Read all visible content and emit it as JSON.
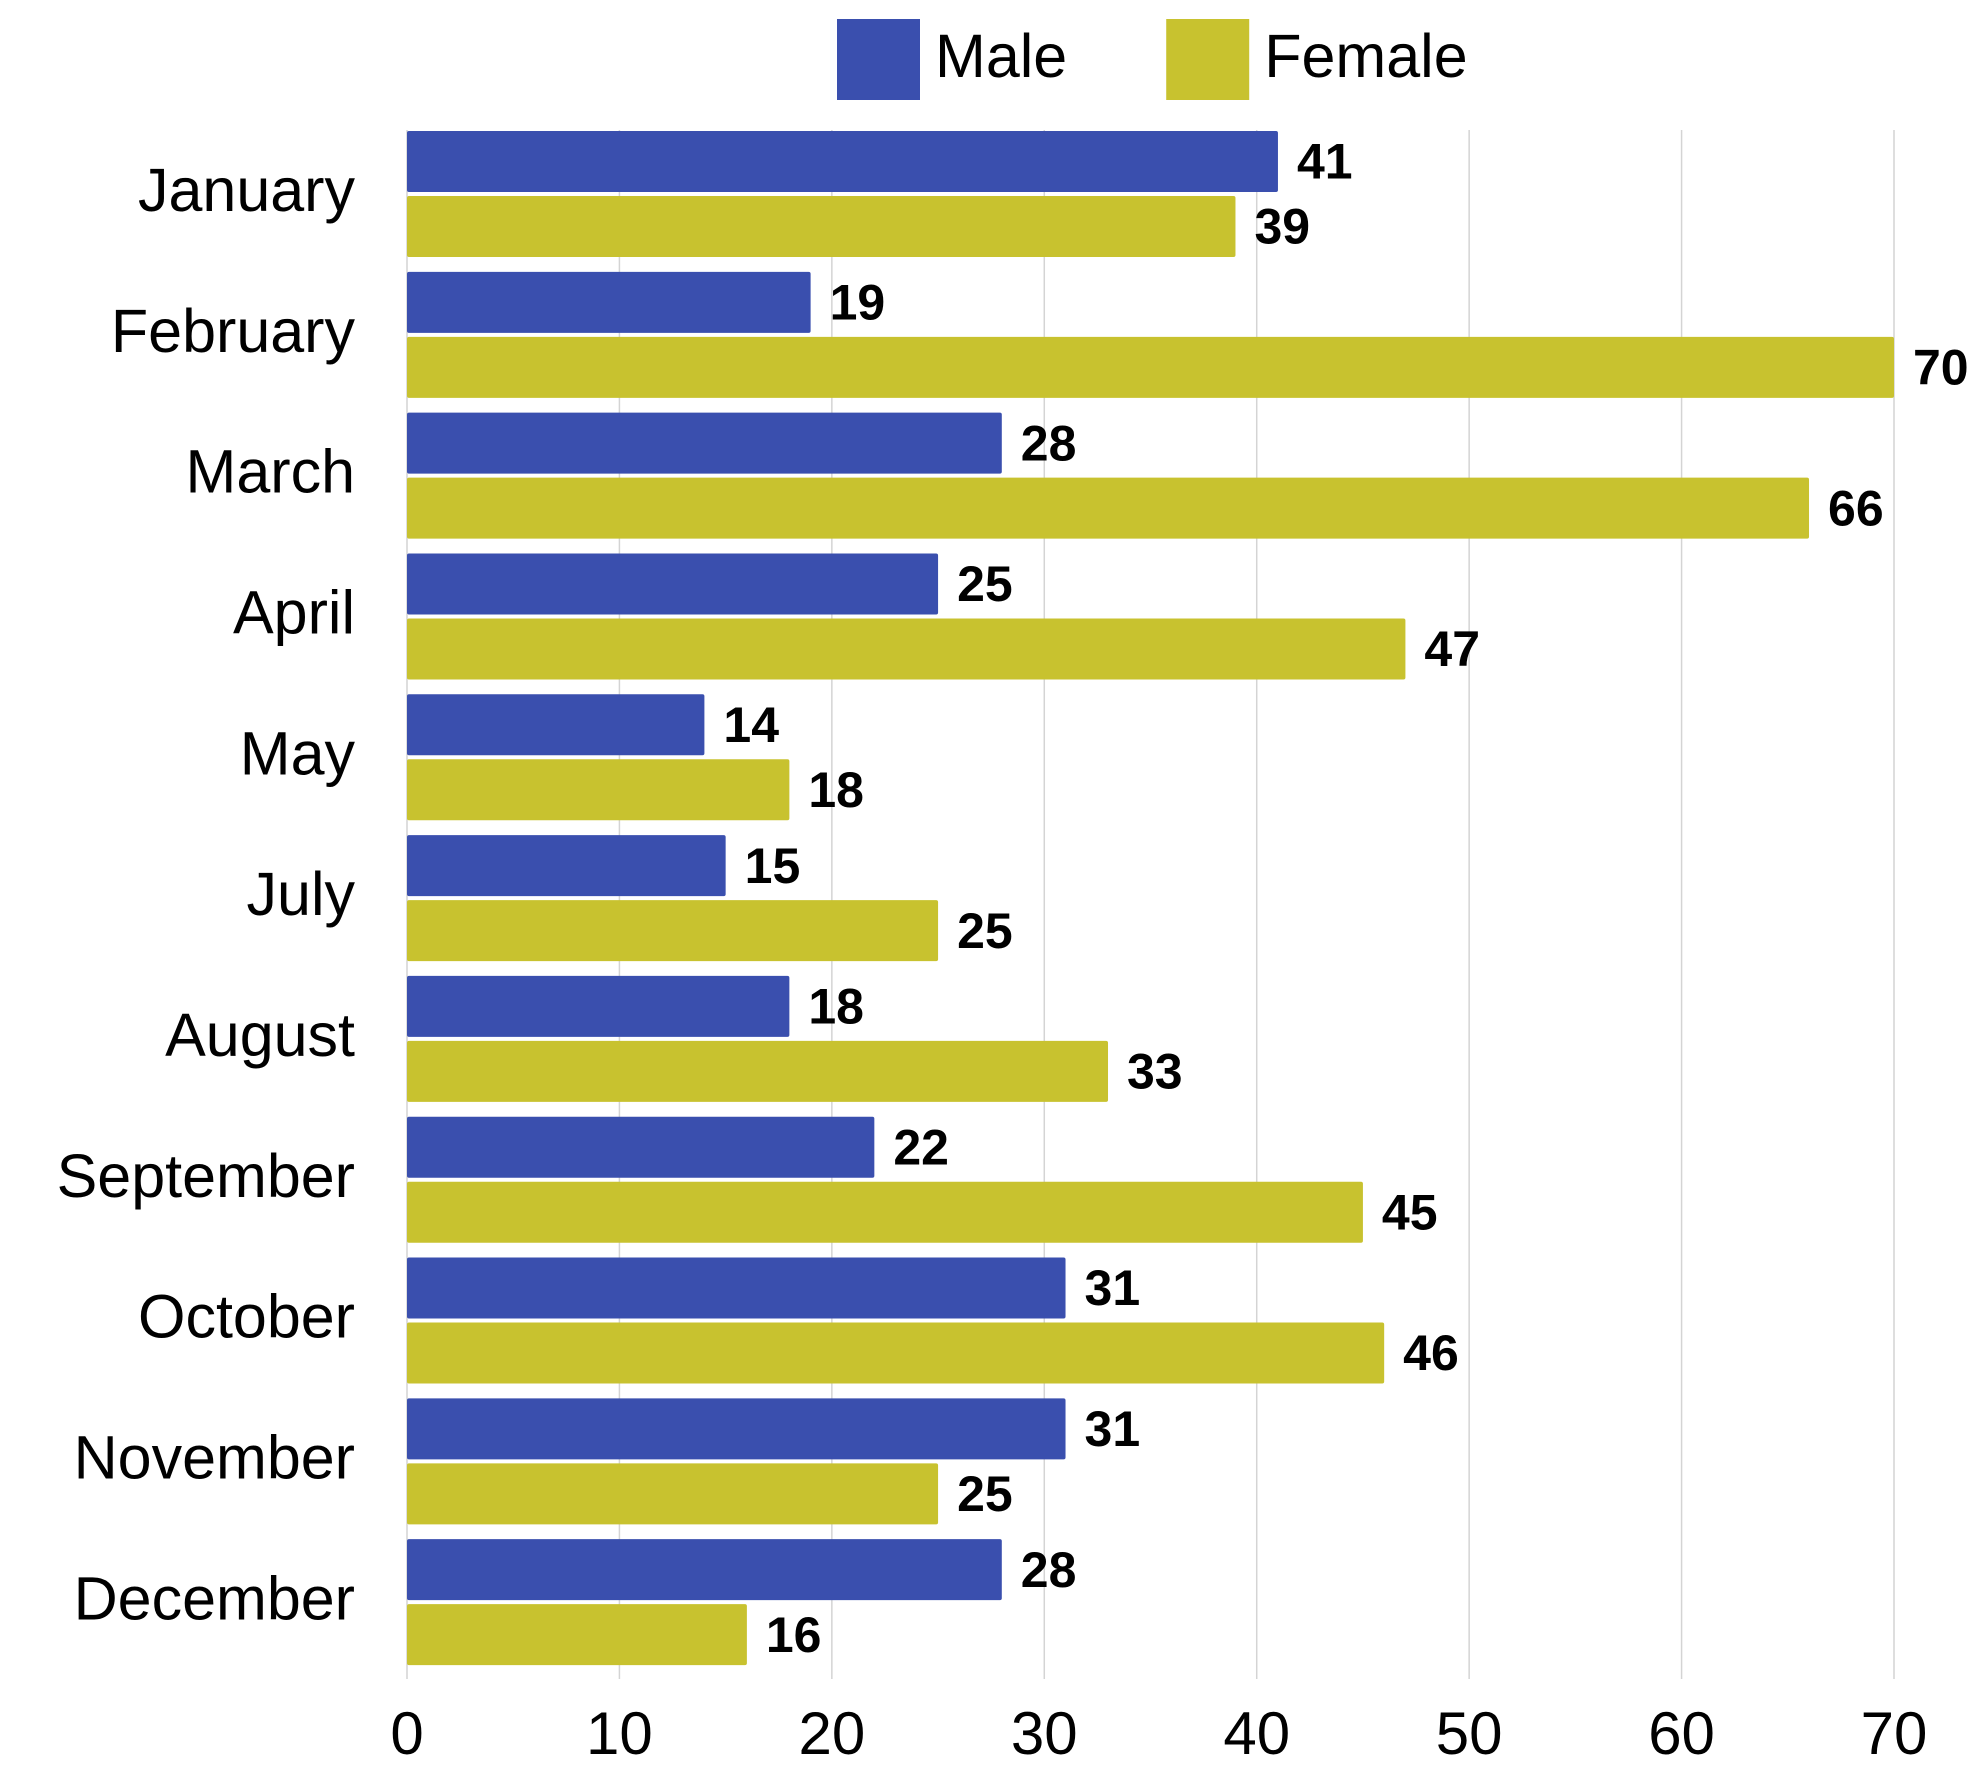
{
  "chart_data": {
    "type": "bar",
    "orientation": "horizontal",
    "categories": [
      "January",
      "February",
      "March",
      "April",
      "May",
      "July",
      "August",
      "September",
      "October",
      "November",
      "December"
    ],
    "series": [
      {
        "name": "Male",
        "color": "#3a4fae",
        "values": [
          41,
          19,
          28,
          25,
          14,
          15,
          18,
          22,
          31,
          31,
          28
        ]
      },
      {
        "name": "Female",
        "color": "#c8c22f",
        "values": [
          39,
          70,
          66,
          47,
          18,
          25,
          33,
          45,
          46,
          25,
          16
        ]
      }
    ],
    "xlim": [
      0,
      70
    ],
    "xticks": [
      0,
      10,
      20,
      30,
      40,
      50,
      60,
      70
    ],
    "grid": true,
    "legend": "top"
  }
}
